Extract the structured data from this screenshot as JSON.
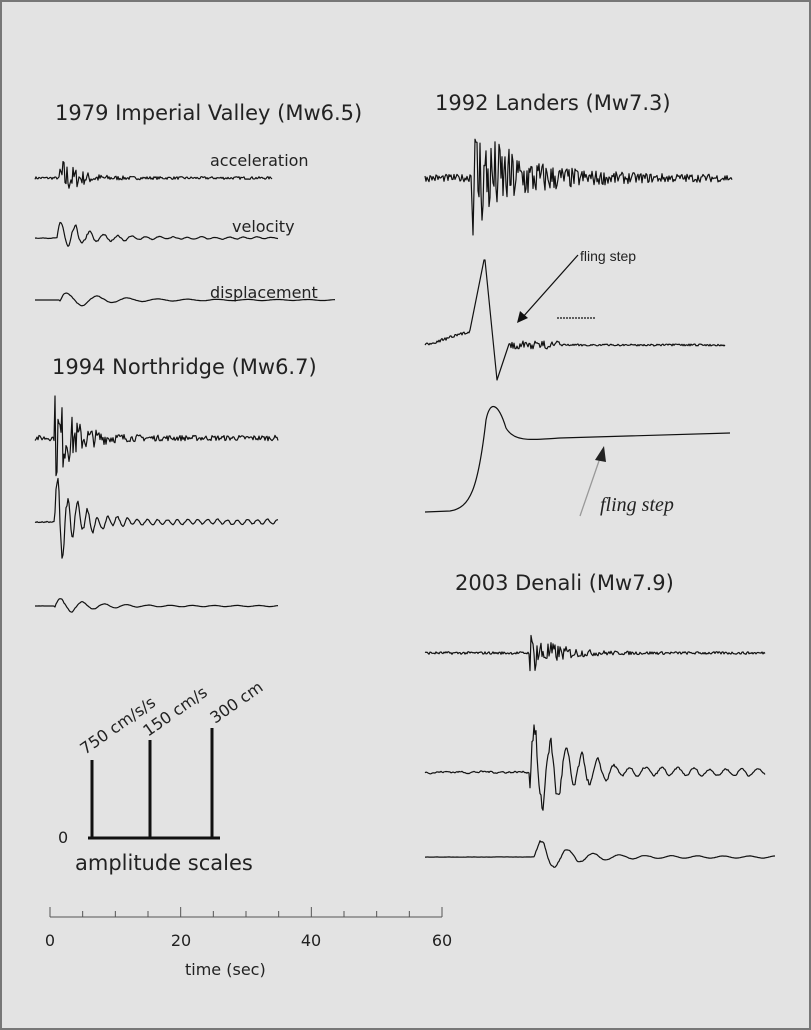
{
  "figure": {
    "panels": [
      {
        "title": "1979 Imperial Valley (Mw6.5)",
        "labels": [
          "acceleration",
          "velocity",
          "displacement"
        ]
      },
      {
        "title": "1994 Northridge (Mw6.7)"
      },
      {
        "title": "1992 Landers (Mw7.3)",
        "annotations": [
          "fling step",
          "fling step"
        ]
      },
      {
        "title": "2003 Denali (Mw7.9)"
      }
    ],
    "amplitude_scales": {
      "zero": "0",
      "labels": [
        "750 cm/s/s",
        "150 cm/s",
        "300 cm"
      ],
      "caption": "amplitude scales"
    },
    "time_axis": {
      "ticks": [
        "0",
        "20",
        "40",
        "60"
      ],
      "label": "time (sec)"
    }
  }
}
